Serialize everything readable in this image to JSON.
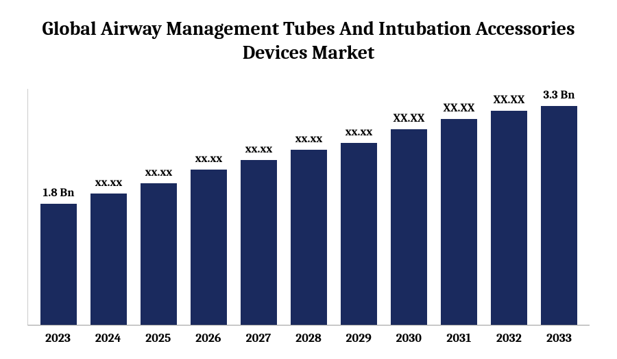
{
  "chart": {
    "type": "bar",
    "title": "Global Airway Management Tubes And Intubation Accessories Devices Market",
    "title_fontsize": 28,
    "title_color": "#000000",
    "background_color": "#ffffff",
    "axis_color": "#999999",
    "categories": [
      "2023",
      "2024",
      "2025",
      "2026",
      "2027",
      "2028",
      "2029",
      "2030",
      "2031",
      "2032",
      "2033"
    ],
    "values": [
      1.8,
      1.95,
      2.1,
      2.3,
      2.45,
      2.6,
      2.7,
      2.9,
      3.05,
      3.18,
      3.3
    ],
    "labels": [
      "1.8 Bn",
      "xx.xx",
      "xx.xx",
      "xx.xx",
      "xx.xx",
      "xx.xx",
      "xx.xx",
      "XX.XX",
      "XX.XX",
      "XX.XX",
      "3.3 Bn"
    ],
    "bar_color": "#1a2a5e",
    "ylim": [
      0,
      3.5
    ],
    "x_tick_fontsize": 18,
    "label_fontsize": 17,
    "bar_width": 0.72
  }
}
